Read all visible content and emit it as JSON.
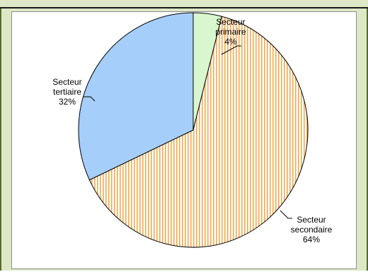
{
  "chart_data": {
    "type": "pie",
    "title": "",
    "slices": [
      {
        "label_line1": "Secteur",
        "label_line2": "primaire",
        "percent_label": "4%",
        "value": 4,
        "color": "#d9f7cf"
      },
      {
        "label_line1": "Secteur",
        "label_line2": "secondaire",
        "percent_label": "64%",
        "value": 64,
        "color": "#f5a94e"
      },
      {
        "label_line1": "Secteur",
        "label_line2": "tertiaire",
        "percent_label": "32%",
        "value": 32,
        "color": "#a6cefa"
      }
    ],
    "start_angle_deg": 0,
    "direction": "clockwise",
    "pattern": {
      "secondaire": "vertical-stripes"
    }
  },
  "colors": {
    "frame_background": "#dde8c6",
    "chart_background": "#ffffff",
    "outline": "#000000"
  }
}
